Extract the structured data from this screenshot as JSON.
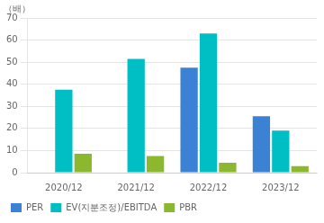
{
  "chart_data": {
    "type": "bar",
    "ylabel": "（배）",
    "categories": [
      "2020/12",
      "2021/12",
      "2022/12",
      "2023/12"
    ],
    "series": [
      {
        "name": "PER",
        "color": "#3c82d4",
        "values": [
          0,
          0,
          47.5,
          25.5
        ]
      },
      {
        "name": "EV(지분조정)/EBITDA",
        "color": "#00bfc4",
        "values": [
          37.5,
          51.5,
          63.0,
          19.0
        ]
      },
      {
        "name": "PBR",
        "color": "#8cb830",
        "values": [
          8.5,
          7.5,
          4.5,
          3.0
        ]
      }
    ],
    "ylim": [
      0,
      70
    ],
    "yticks": [
      0,
      10,
      20,
      30,
      40,
      50,
      60,
      70
    ],
    "grid": true,
    "legend": "lower left"
  }
}
